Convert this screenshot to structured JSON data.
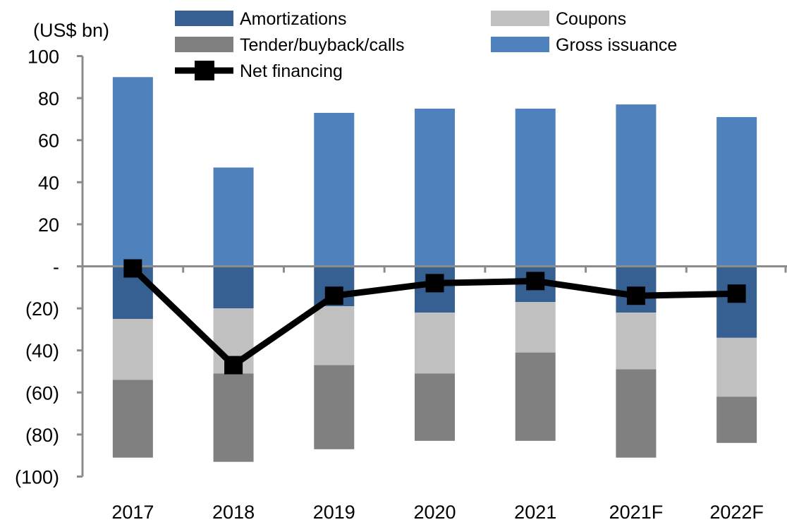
{
  "chart_data": {
    "type": "bar",
    "stacked": true,
    "unit_label": "(US$ bn)",
    "title": "",
    "xlabel": "",
    "ylabel": "(US$ bn)",
    "ylim": [
      -100,
      100
    ],
    "yticks": [
      100,
      80,
      60,
      40,
      20,
      0,
      -20,
      -40,
      -60,
      -80,
      -100
    ],
    "ytick_labels": [
      "100",
      "80",
      "60",
      "40",
      "20",
      "-",
      "(20)",
      "(40)",
      "(60)",
      "(80)",
      "(100)"
    ],
    "grid": false,
    "legend_position": "top",
    "categories": [
      "2017",
      "2018",
      "2019",
      "2020",
      "2021",
      "2021F",
      "2022F"
    ],
    "series": [
      {
        "name": "Gross issuance",
        "kind": "bar",
        "color": "#4f81bd",
        "values": [
          90,
          47,
          73,
          75,
          75,
          77,
          71
        ]
      },
      {
        "name": "Amortizations",
        "kind": "bar",
        "color": "#376092",
        "values": [
          -25,
          -20,
          -19,
          -22,
          -17,
          -22,
          -34
        ]
      },
      {
        "name": "Coupons",
        "kind": "bar",
        "color": "#c0c0c0",
        "values": [
          -29,
          -31,
          -28,
          -29,
          -24,
          -27,
          -28
        ]
      },
      {
        "name": "Tender/buyback/calls",
        "kind": "bar",
        "color": "#808080",
        "values": [
          -37,
          -42,
          -40,
          -32,
          -42,
          -42,
          -22
        ]
      },
      {
        "name": "Net financing",
        "kind": "line",
        "color": "#000000",
        "values": [
          -1,
          -47,
          -14,
          -8,
          -7,
          -14,
          -13
        ]
      }
    ],
    "legend": [
      {
        "name": "Amortizations",
        "symbol": "bar",
        "color": "#376092"
      },
      {
        "name": "Coupons",
        "symbol": "bar",
        "color": "#c0c0c0"
      },
      {
        "name": "Tender/buyback/calls",
        "symbol": "bar",
        "color": "#808080"
      },
      {
        "name": "Gross issuance",
        "symbol": "bar",
        "color": "#4f81bd"
      },
      {
        "name": "Net financing",
        "symbol": "line-marker",
        "color": "#000000"
      }
    ],
    "axis_color": "#8c8c8c"
  }
}
